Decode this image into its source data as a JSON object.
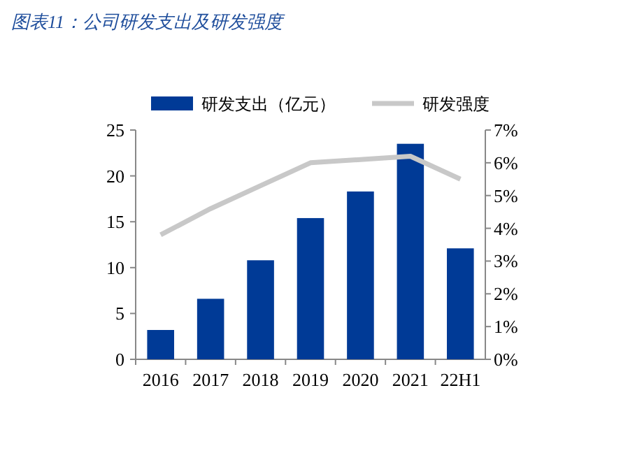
{
  "chart_data": {
    "type": "bar",
    "title": "图表11：公司研发支出及研发强度",
    "categories": [
      "2016",
      "2017",
      "2018",
      "2019",
      "2020",
      "2021",
      "22H1"
    ],
    "series": [
      {
        "name": "研发支出（亿元）",
        "color": "#003a96",
        "values": [
          3.2,
          6.6,
          10.8,
          15.4,
          18.3,
          23.5,
          12.1
        ]
      },
      {
        "name": "研发强度",
        "type": "line",
        "axis": "y2",
        "color": "#c8c8c8",
        "values": [
          3.8,
          4.6,
          5.3,
          6.0,
          6.1,
          6.2,
          5.5
        ]
      }
    ],
    "ylim": [
      0,
      25
    ],
    "yticks": [
      0,
      5,
      10,
      15,
      20,
      25
    ],
    "y2lim": [
      0,
      7
    ],
    "y2ticks": [
      {
        "value": 0,
        "label": "0%"
      },
      {
        "value": 1,
        "label": "1%"
      },
      {
        "value": 2,
        "label": "2%"
      },
      {
        "value": 3,
        "label": "3%"
      },
      {
        "value": 4,
        "label": "4%"
      },
      {
        "value": 5,
        "label": "5%"
      },
      {
        "value": 6,
        "label": "6%"
      },
      {
        "value": 7,
        "label": "7%"
      }
    ],
    "legend": "top",
    "grid": false
  }
}
